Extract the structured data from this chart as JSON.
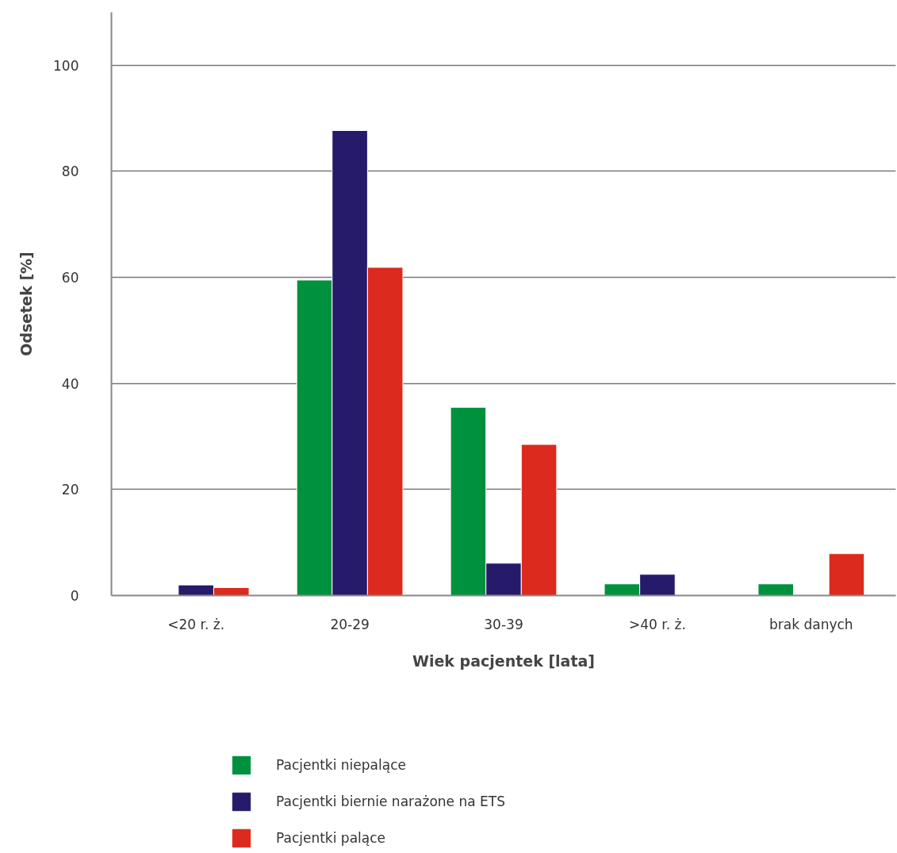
{
  "chart_data": {
    "type": "bar",
    "xlabel": "Wiek pacjentek [lata]",
    "ylabel": "Odsetek [%]",
    "categories": [
      "<20 r. ż.",
      "20-29",
      "30-39",
      ">40 r. ż.",
      "brak danych"
    ],
    "series": [
      {
        "name": "Pacjentki niepalące",
        "color": "#00913f",
        "values": [
          null,
          59.5,
          35.5,
          2.2,
          2.2
        ]
      },
      {
        "name": "Pacjentki biernie narażone na ETS",
        "color": "#261a6b",
        "values": [
          2.0,
          87.7,
          6.1,
          4.0,
          null
        ]
      },
      {
        "name": "Pacjentki palące",
        "color": "#dc2a1e",
        "values": [
          1.5,
          61.9,
          28.5,
          null,
          7.9
        ]
      }
    ],
    "ylim": [
      0,
      110
    ],
    "yticks": [
      0,
      20,
      40,
      60,
      80,
      100
    ],
    "grid": "y",
    "legend": "bottom"
  }
}
